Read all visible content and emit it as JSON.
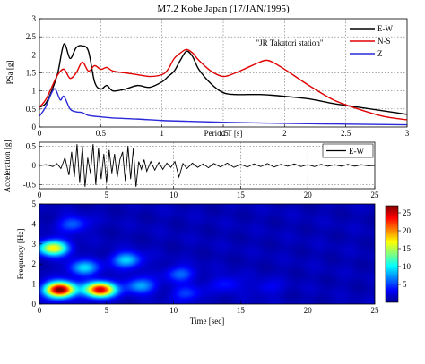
{
  "chart_data": [
    {
      "type": "line",
      "title": "M7.2 Kobe Japan (17/JAN/1995)",
      "xlabel": "Period T [s]",
      "ylabel": "PSa [g]",
      "xlim": [
        0,
        3
      ],
      "ylim": [
        0,
        3
      ],
      "xticks": [
        0,
        0.5,
        1,
        1.5,
        2,
        2.5,
        3
      ],
      "yticks": [
        0,
        0.5,
        1,
        1.5,
        2,
        2.5,
        3
      ],
      "xtick_labels": [
        "0",
        "0.5",
        "1",
        "1.5",
        "2",
        "2.5",
        "3"
      ],
      "ytick_labels": [
        "0",
        "0.5",
        "1",
        "1.5",
        "2",
        "2.5",
        "3"
      ],
      "grid": true,
      "annotation": "\"JR Takatori station\"",
      "legend_position": "top-right",
      "series": [
        {
          "name": "E-W",
          "color": "#000000",
          "x": [
            0,
            0.05,
            0.1,
            0.15,
            0.2,
            0.25,
            0.3,
            0.35,
            0.4,
            0.45,
            0.5,
            0.55,
            0.6,
            0.7,
            0.8,
            0.9,
            1.0,
            1.05,
            1.1,
            1.15,
            1.2,
            1.25,
            1.3,
            1.4,
            1.5,
            1.6,
            1.7,
            1.8,
            1.9,
            2.0,
            2.2,
            2.4,
            2.6,
            2.8,
            3.0
          ],
          "y": [
            0.55,
            0.65,
            1.0,
            1.5,
            2.3,
            1.9,
            2.2,
            2.25,
            2.1,
            1.25,
            1.05,
            1.15,
            1.0,
            1.05,
            1.15,
            1.1,
            1.25,
            1.4,
            1.55,
            1.85,
            2.1,
            1.95,
            1.6,
            1.2,
            0.95,
            0.9,
            0.9,
            0.9,
            0.88,
            0.85,
            0.78,
            0.65,
            0.55,
            0.45,
            0.35
          ]
        },
        {
          "name": "N-S",
          "color": "#e00000",
          "x": [
            0,
            0.05,
            0.1,
            0.15,
            0.2,
            0.25,
            0.3,
            0.35,
            0.4,
            0.45,
            0.5,
            0.55,
            0.6,
            0.7,
            0.8,
            0.9,
            1.0,
            1.05,
            1.1,
            1.15,
            1.2,
            1.25,
            1.3,
            1.4,
            1.5,
            1.6,
            1.7,
            1.8,
            1.85,
            1.9,
            2.0,
            2.2,
            2.4,
            2.6,
            2.8,
            3.0
          ],
          "y": [
            0.55,
            0.75,
            1.1,
            1.45,
            1.6,
            1.35,
            1.5,
            1.8,
            1.55,
            1.7,
            1.6,
            1.65,
            1.55,
            1.5,
            1.45,
            1.4,
            1.45,
            1.6,
            1.9,
            2.05,
            2.15,
            2.05,
            1.85,
            1.55,
            1.4,
            1.5,
            1.65,
            1.8,
            1.85,
            1.8,
            1.6,
            1.15,
            0.75,
            0.5,
            0.3,
            0.2
          ]
        },
        {
          "name": "Z",
          "color": "#2a2ad8",
          "x": [
            0,
            0.05,
            0.1,
            0.13,
            0.17,
            0.2,
            0.25,
            0.3,
            0.35,
            0.4,
            0.5,
            0.6,
            0.8,
            1.0,
            1.2,
            1.5,
            2.0,
            2.5,
            3.0
          ],
          "y": [
            0.3,
            0.55,
            0.95,
            1.05,
            0.75,
            0.85,
            0.5,
            0.42,
            0.4,
            0.32,
            0.28,
            0.25,
            0.22,
            0.18,
            0.16,
            0.13,
            0.1,
            0.08,
            0.06
          ]
        }
      ]
    },
    {
      "type": "line",
      "ylabel": "Acceleration [g]",
      "xlim": [
        0,
        25
      ],
      "ylim": [
        -0.6,
        0.6
      ],
      "xticks": [
        0,
        5,
        10,
        15,
        20,
        25
      ],
      "yticks": [
        -0.5,
        0,
        0.5
      ],
      "xtick_labels": [
        "0",
        "5",
        "10",
        "15",
        "20",
        "25"
      ],
      "ytick_labels": [
        "-0.5",
        "0",
        "0.5"
      ],
      "grid": true,
      "legend_position": "top-right",
      "series": [
        {
          "name": "E-W",
          "color": "#000000",
          "x": [
            0,
            0.5,
            1,
            1.3,
            1.6,
            1.9,
            2.2,
            2.4,
            2.6,
            2.8,
            3.0,
            3.2,
            3.4,
            3.6,
            3.8,
            4.0,
            4.2,
            4.4,
            4.6,
            4.8,
            5.0,
            5.2,
            5.4,
            5.6,
            5.8,
            6.0,
            6.2,
            6.4,
            6.6,
            6.8,
            7.0,
            7.2,
            7.4,
            7.6,
            7.8,
            8.0,
            8.3,
            8.6,
            8.9,
            9.2,
            9.5,
            9.8,
            10.1,
            10.4,
            10.7,
            11.0,
            11.4,
            11.8,
            12.2,
            12.6,
            13.0,
            13.5,
            14.0,
            14.5,
            15.0,
            15.5,
            16.0,
            16.5,
            17.0,
            17.5,
            18.0,
            18.5,
            19.0,
            19.5,
            20.0,
            20.5,
            21.0,
            21.5,
            22.0,
            22.5,
            23.0,
            23.5,
            24.0,
            24.5,
            25.0
          ],
          "y": [
            0,
            0.02,
            -0.03,
            0.05,
            -0.08,
            0.2,
            -0.25,
            0.35,
            -0.3,
            0.55,
            -0.45,
            0.5,
            -0.55,
            0.2,
            -0.2,
            0.55,
            -0.5,
            0.45,
            -0.35,
            0.3,
            -0.45,
            0.4,
            -0.2,
            0.3,
            -0.3,
            0.15,
            0.35,
            -0.4,
            0.5,
            -0.35,
            0.45,
            -0.55,
            0.1,
            -0.1,
            0.15,
            -0.15,
            0.1,
            -0.12,
            0.08,
            -0.1,
            0.06,
            -0.05,
            0.1,
            -0.3,
            0.05,
            -0.08,
            0.06,
            -0.05,
            0.04,
            -0.06,
            0.05,
            -0.04,
            0.06,
            -0.05,
            0.03,
            -0.04,
            0.04,
            -0.03,
            0.05,
            -0.04,
            0.03,
            -0.02,
            0.04,
            -0.03,
            0.02,
            -0.03,
            0.03,
            -0.02,
            0.02,
            -0.02,
            0.03,
            -0.02,
            0.02,
            -0.01,
            0
          ]
        }
      ]
    },
    {
      "type": "heatmap",
      "xlabel": "Time [sec]",
      "ylabel": "Frequency [Hz]",
      "xlim": [
        0,
        25
      ],
      "ylim": [
        0,
        5
      ],
      "xticks": [
        0,
        5,
        10,
        15,
        20,
        25
      ],
      "yticks": [
        0,
        1,
        2,
        3,
        4,
        5
      ],
      "xtick_labels": [
        "0",
        "5",
        "10",
        "15",
        "20",
        "25"
      ],
      "ytick_labels": [
        "0",
        "1",
        "2",
        "3",
        "4",
        "5"
      ],
      "colorbar": {
        "min": 0,
        "max": 27,
        "ticks": [
          5,
          10,
          15,
          20,
          25
        ],
        "tick_labels": [
          "5",
          "10",
          "15",
          "20",
          "25"
        ]
      },
      "peaks": [
        {
          "t": 1.5,
          "f": 0.7,
          "value": 27
        },
        {
          "t": 4.5,
          "f": 0.7,
          "value": 24
        },
        {
          "t": 1.0,
          "f": 2.8,
          "value": 16
        },
        {
          "t": 3.3,
          "f": 1.8,
          "value": 8
        },
        {
          "t": 6.5,
          "f": 2.2,
          "value": 8
        },
        {
          "t": 2.5,
          "f": 4.0,
          "value": 5
        },
        {
          "t": 7.5,
          "f": 0.9,
          "value": 7
        },
        {
          "t": 10.5,
          "f": 1.5,
          "value": 5
        },
        {
          "t": 11.0,
          "f": 0.5,
          "value": 4
        },
        {
          "t": 14.0,
          "f": 1.0,
          "value": 3
        },
        {
          "t": 17.0,
          "f": 0.8,
          "value": 2
        }
      ]
    }
  ]
}
